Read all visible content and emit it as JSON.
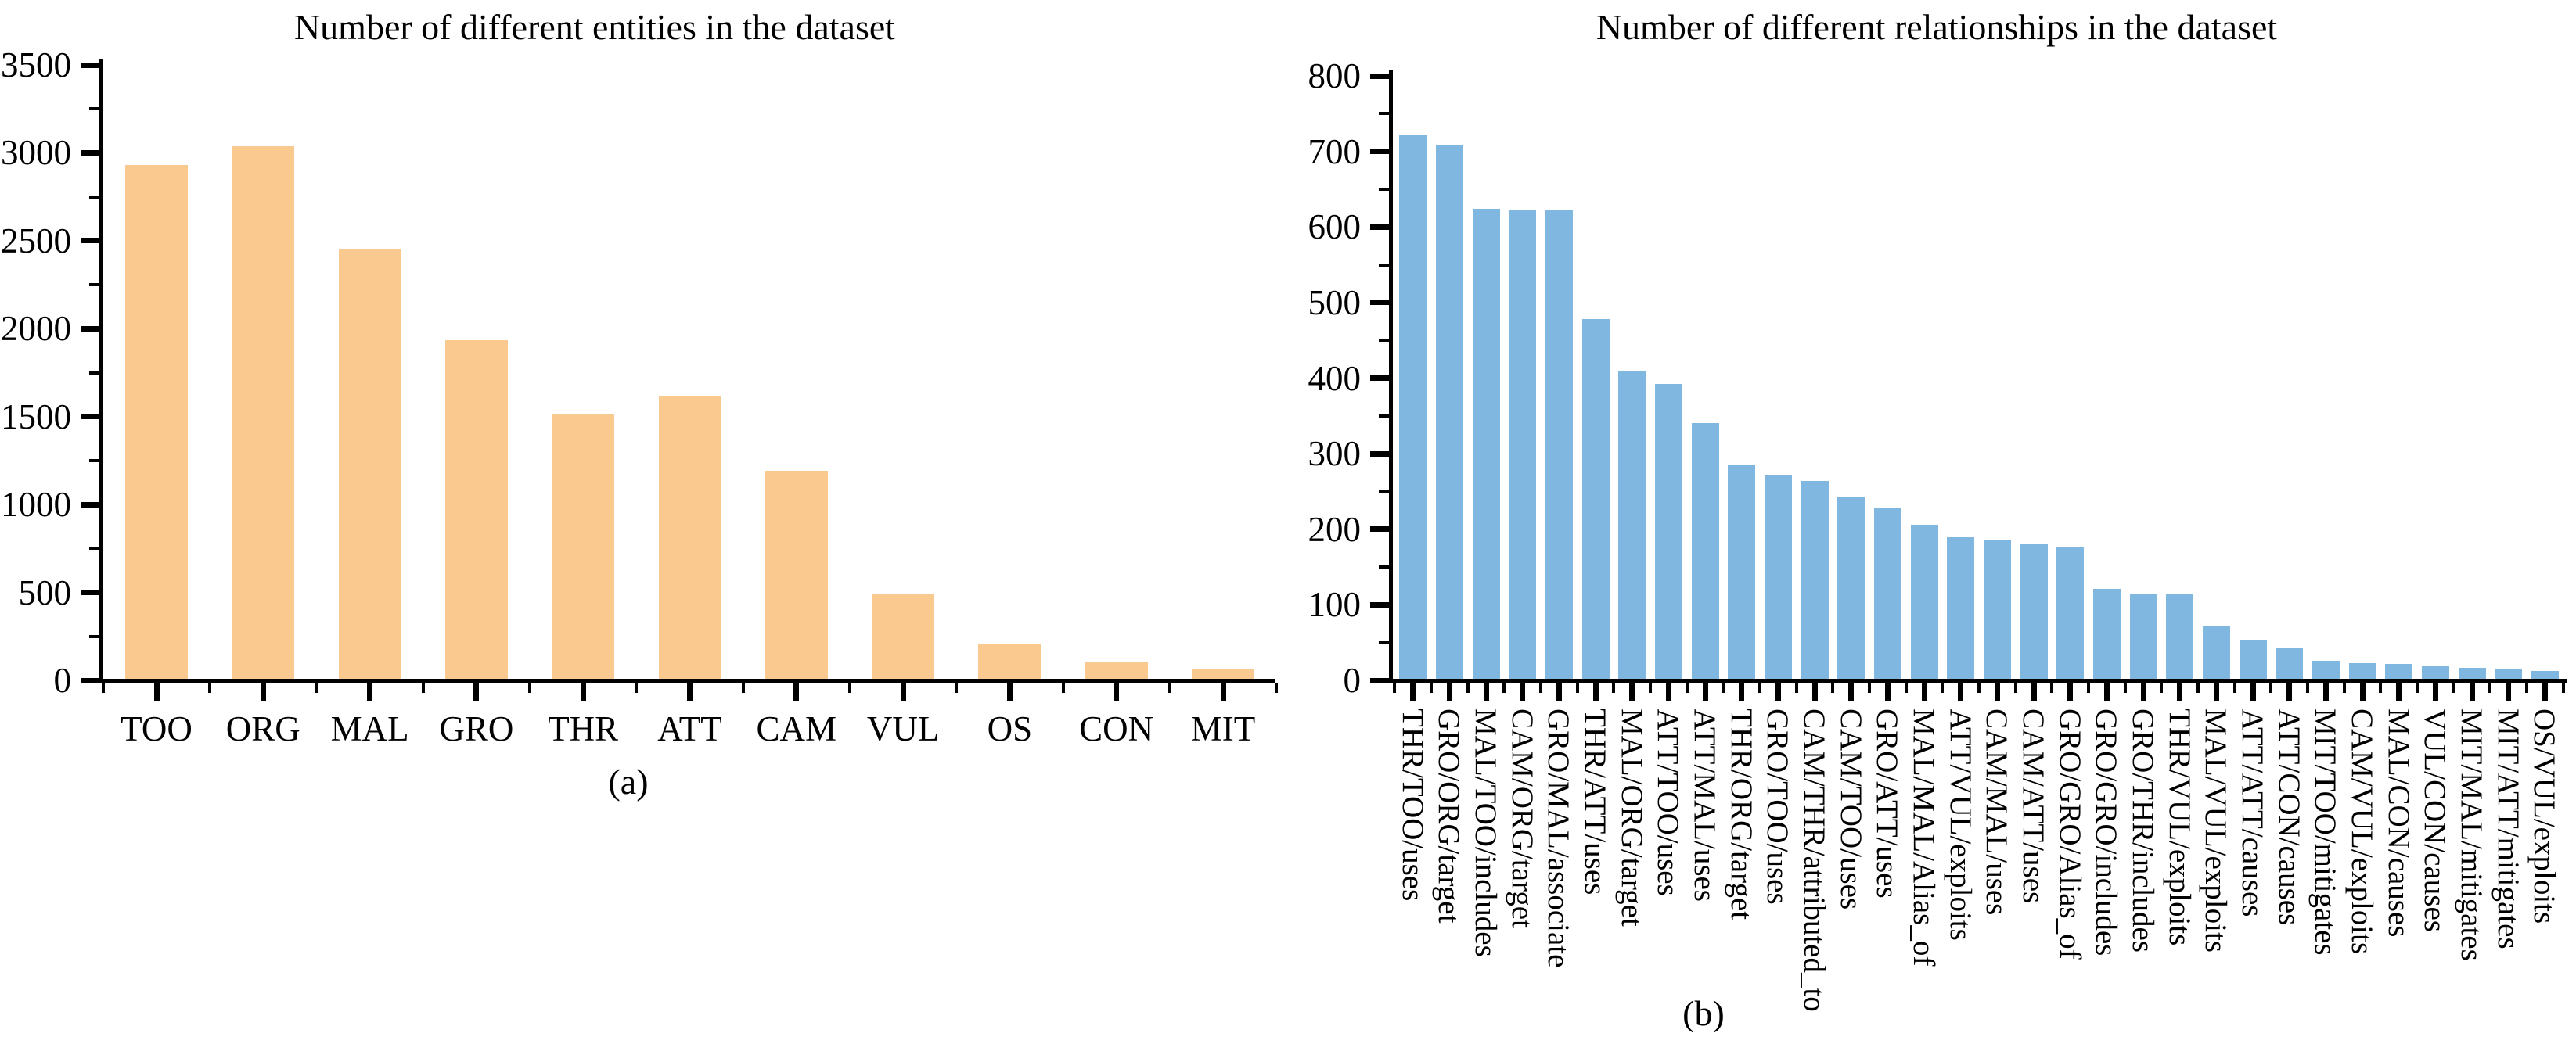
{
  "figure": {
    "panel_a_caption": "(a)",
    "panel_b_caption": "(b)"
  },
  "chart_data": [
    {
      "type": "bar",
      "title": "Number of different entities in the dataset",
      "caption": "(a)",
      "categories": [
        "TOO",
        "ORG",
        "MAL",
        "GRO",
        "THR",
        "ATT",
        "CAM",
        "VUL",
        "OS",
        "CON",
        "MIT"
      ],
      "values": [
        2920,
        3030,
        2445,
        1925,
        1505,
        1610,
        1185,
        480,
        195,
        95,
        55
      ],
      "xlabel": "",
      "ylabel": "",
      "ylim": [
        0,
        3500
      ],
      "ytick_major": 500,
      "ytick_minor": 250,
      "grid": false,
      "legend": "none",
      "bar_color": "#FAC98F",
      "axis_color": "#000000",
      "tick_label_rotation": 0
    },
    {
      "type": "bar",
      "title": "Number of different relationships in the dataset",
      "caption": "(b)",
      "categories": [
        "THR/TOO/uses",
        "GRO/ORG/target",
        "MAL/TOO/includes",
        "CAM/ORG/target",
        "GRO/MAL/associate",
        "THR/ATT/uses",
        "MAL/ORG/target",
        "ATT/TOO/uses",
        "ATT/MAL/uses",
        "THR/ORG/target",
        "GRO/TOO/uses",
        "CAM/THR/attributed_to",
        "CAM/TOO/uses",
        "GRO/ATT/uses",
        "MAL/MAL/Alias_of",
        "ATT/VUL/exploits",
        "CAM/MAL/uses",
        "CAM/ATT/uses",
        "GRO/GRO/Alias_of",
        "GRO/GRO/includes",
        "GRO/THR/includes",
        "THR/VUL/exploits",
        "MAL/VUL/exploits",
        "ATT/ATT/causes",
        "ATT/CON/causes",
        "MIT/TOO/mitigates",
        "CAM/VUL/exploits",
        "MAL/CON/causes",
        "VUL/CON/causes",
        "MIT/MAL/mitigates",
        "MIT/ATT/mitigates",
        "OS/VUL/exploits"
      ],
      "values": [
        720,
        706,
        622,
        621,
        620,
        476,
        408,
        390,
        338,
        284,
        270,
        262,
        240,
        226,
        204,
        187,
        184,
        179,
        175,
        119,
        112,
        112,
        70,
        52,
        40,
        24,
        21,
        20,
        18,
        14,
        12,
        10
      ],
      "xlabel": "",
      "ylabel": "",
      "ylim": [
        0,
        800
      ],
      "ytick_major": 100,
      "ytick_minor": 50,
      "grid": false,
      "legend": "none",
      "bar_color": "#7FB7E0",
      "axis_color": "#000000",
      "tick_label_rotation": 90
    }
  ]
}
